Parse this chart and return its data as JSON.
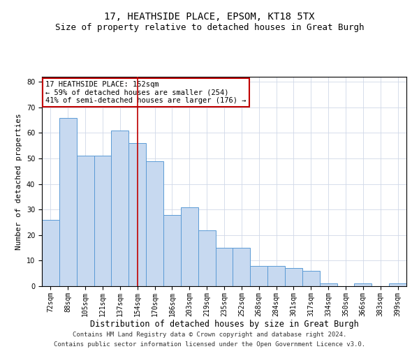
{
  "title_line1": "17, HEATHSIDE PLACE, EPSOM, KT18 5TX",
  "title_line2": "Size of property relative to detached houses in Great Burgh",
  "xlabel": "Distribution of detached houses by size in Great Burgh",
  "ylabel": "Number of detached properties",
  "bar_labels": [
    "72sqm",
    "88sqm",
    "105sqm",
    "121sqm",
    "137sqm",
    "154sqm",
    "170sqm",
    "186sqm",
    "203sqm",
    "219sqm",
    "235sqm",
    "252sqm",
    "268sqm",
    "284sqm",
    "301sqm",
    "317sqm",
    "334sqm",
    "350sqm",
    "366sqm",
    "383sqm",
    "399sqm"
  ],
  "bar_heights": [
    26,
    66,
    51,
    51,
    61,
    56,
    49,
    28,
    31,
    22,
    15,
    15,
    8,
    8,
    7,
    6,
    1,
    0,
    1,
    0,
    1
  ],
  "bar_color": "#c7d9f0",
  "bar_edge_color": "#5b9bd5",
  "vline_index": 5,
  "vline_color": "#c00000",
  "annotation_text": "17 HEATHSIDE PLACE: 152sqm\n← 59% of detached houses are smaller (254)\n41% of semi-detached houses are larger (176) →",
  "annotation_box_color": "#ffffff",
  "annotation_box_edge": "#c00000",
  "ylim": [
    0,
    82
  ],
  "yticks": [
    0,
    10,
    20,
    30,
    40,
    50,
    60,
    70,
    80
  ],
  "footer_line1": "Contains HM Land Registry data © Crown copyright and database right 2024.",
  "footer_line2": "Contains public sector information licensed under the Open Government Licence v3.0.",
  "bg_color": "#ffffff",
  "grid_color": "#d0d8e8",
  "title_fontsize": 10,
  "subtitle_fontsize": 9,
  "tick_fontsize": 7,
  "ylabel_fontsize": 8,
  "xlabel_fontsize": 8.5,
  "footer_fontsize": 6.5,
  "annot_fontsize": 7.5
}
